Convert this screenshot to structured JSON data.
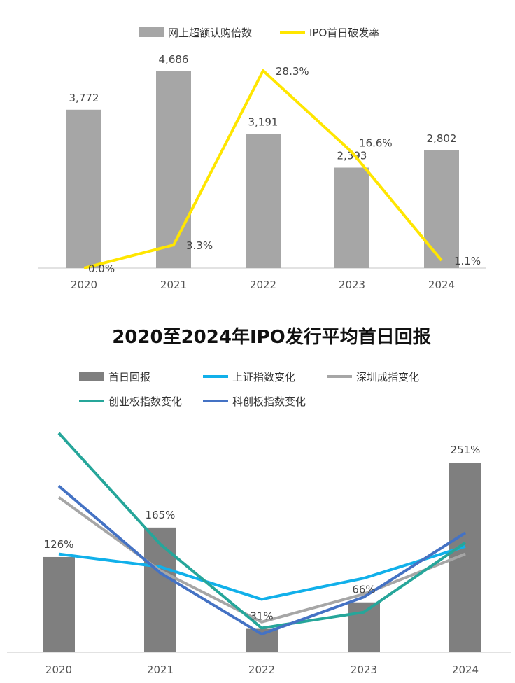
{
  "chart_data": [
    {
      "type": "bar",
      "categories": [
        "2020",
        "2021",
        "2022",
        "2023",
        "2024"
      ],
      "series": [
        {
          "name": "网上超额认购倍数",
          "type": "bar",
          "values": [
            3772,
            4686,
            3191,
            2393,
            2802
          ],
          "labels": [
            "3,772",
            "4,686",
            "3,191",
            "2,393",
            "2,802"
          ],
          "color": "#a6a6a6"
        },
        {
          "name": "IPO首日破发率",
          "type": "line",
          "values": [
            0.0,
            3.3,
            28.3,
            16.6,
            1.1
          ],
          "labels": [
            "0.0%",
            "3.3%",
            "28.3%",
            "16.6%",
            "1.1%"
          ],
          "color": "#ffe600"
        }
      ],
      "title": "",
      "legend": "top-center",
      "grid": false
    },
    {
      "type": "bar",
      "title": "2020至2024年IPO发行平均首日回报",
      "categories": [
        "2020",
        "2021",
        "2022",
        "2023",
        "2024"
      ],
      "series": [
        {
          "name": "首日回报",
          "type": "bar",
          "values": [
            126,
            165,
            31,
            66,
            251
          ],
          "labels": [
            "126%",
            "165%",
            "31%",
            "66%",
            "251%"
          ],
          "color": "#7f7f7f"
        },
        {
          "name": "上证指数变化",
          "type": "line",
          "values": [
            130,
            113,
            70,
            98,
            140
          ],
          "color": "#11b0ea"
        },
        {
          "name": "深圳成指变化",
          "type": "line",
          "values": [
            205,
            108,
            40,
            77,
            130
          ],
          "color": "#a6a6a6"
        },
        {
          "name": "创业板指数变化",
          "type": "line",
          "values": [
            290,
            143,
            32,
            53,
            145
          ],
          "color": "#26a69a"
        },
        {
          "name": "科创板指数变化",
          "type": "line",
          "values": [
            220,
            105,
            24,
            73,
            158
          ],
          "color": "#4472c4"
        }
      ],
      "legend": "top",
      "grid": false
    }
  ]
}
